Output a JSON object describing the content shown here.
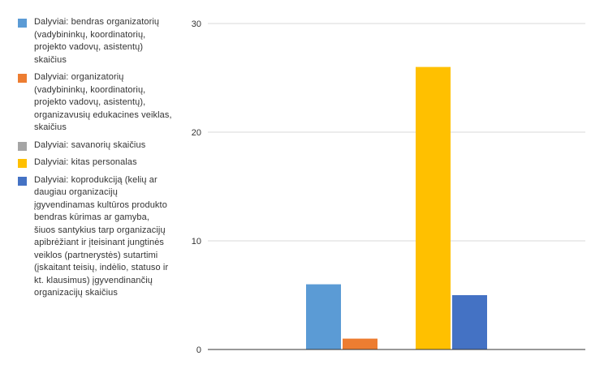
{
  "chart_data": {
    "type": "bar",
    "title": "",
    "xlabel": "",
    "ylabel": "",
    "ylim": [
      0,
      30
    ],
    "yticks": [
      0,
      10,
      20,
      30
    ],
    "grid": true,
    "legend_position": "left",
    "series": [
      {
        "name": "Dalyviai: bendras organizatorių (vadybininkų, koordinatorių, projekto vadovų, asistentų) skaičius",
        "value": 6,
        "color": "#5b9bd5"
      },
      {
        "name": "Dalyviai: organizatorių (vadybininkų, koordinatorių, projekto vadovų, asistentų), organizavusių edukacines veiklas, skaičius",
        "value": 1,
        "color": "#ed7d31"
      },
      {
        "name": "Dalyviai: savanorių skaičius",
        "value": 0,
        "color": "#a5a5a5"
      },
      {
        "name": "Dalyviai: kitas personalas",
        "value": 26,
        "color": "#ffc000"
      },
      {
        "name": "Dalyviai: koprodukciją (kelių ar daugiau organizacijų įgyvendinamas kultūros produkto bendras kūrimas ar gamyba, šiuos santykius tarp organizacijų apibrėžiant ir įteisinant jungtinės veiklos (partnerystės) sutartimi (įskaitant teisių, indėlio, statuso ir kt. klausimus) įgyvendinančių organizacijų skaičius",
        "value": 5,
        "color": "#4472c4"
      }
    ]
  }
}
